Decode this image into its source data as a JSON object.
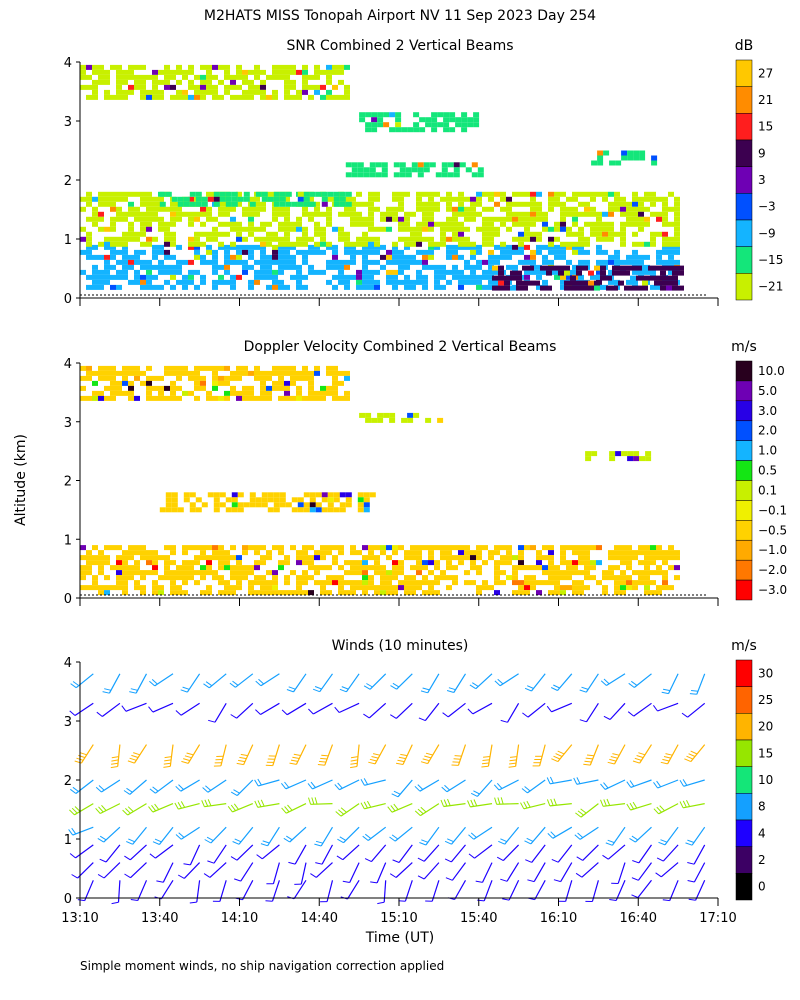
{
  "title": "M2HATS MISS Tonopah Airport NV  11 Sep 2023 Day 254",
  "ylabel": "Altitude (km)",
  "xlabel": "Time (UT)",
  "footnote": "Simple moment winds, no ship navigation correction applied",
  "x_ticks": [
    "13:10",
    "13:40",
    "14:10",
    "14:40",
    "15:10",
    "15:40",
    "16:10",
    "16:40",
    "17:10"
  ],
  "y_ticks": [
    "0",
    "1",
    "2",
    "3",
    "4"
  ],
  "panels": [
    {
      "title": "SNR Combined 2 Vertical Beams",
      "units": "dB",
      "colorbar_labels": [
        "27",
        "21",
        "15",
        "9",
        "3",
        "−3",
        "−9",
        "−15",
        "−21"
      ],
      "colorbar_colors": [
        "#ffc800",
        "#ff8c00",
        "#ff1e1e",
        "#3c0050",
        "#6e00b4",
        "#0050ff",
        "#14b4ff",
        "#14e67a",
        "#c8f000"
      ]
    },
    {
      "title": "Doppler Velocity Combined 2 Vertical Beams",
      "units": "m/s",
      "colorbar_labels": [
        "10.0",
        "5.0",
        "3.0",
        "2.0",
        "1.0",
        "0.5",
        "0.1",
        "−0.1",
        "−0.5",
        "−1.0",
        "−2.0",
        "−3.0"
      ],
      "colorbar_colors": [
        "#28001e",
        "#6e00b4",
        "#2800e6",
        "#0050ff",
        "#14b4ff",
        "#14e614",
        "#c8f000",
        "#f0f000",
        "#ffd200",
        "#ffaa00",
        "#ff7800",
        "#ff0000"
      ]
    },
    {
      "title": "Winds (10 minutes)",
      "units": "m/s",
      "colorbar_labels": [
        "30",
        "25",
        "20",
        "15",
        "10",
        "8",
        "4",
        "2",
        "0"
      ],
      "colorbar_colors": [
        "#ff0000",
        "#ff6400",
        "#ffb400",
        "#96e600",
        "#14e678",
        "#14a0ff",
        "#1e00ff",
        "#3c0064",
        "#000000"
      ]
    }
  ],
  "chart_data": [
    {
      "type": "heatmap",
      "title": "SNR Combined 2 Vertical Beams",
      "xlabel": "Time (UT)",
      "ylabel": "Altitude (km)",
      "xlim": [
        "13:10",
        "17:10"
      ],
      "ylim": [
        0,
        4
      ],
      "units": "dB",
      "color_levels": [
        -21,
        -15,
        -9,
        -3,
        3,
        9,
        15,
        21,
        27
      ],
      "layers": [
        {
          "t_start": "13:10",
          "t_end": "16:55",
          "z_bottom": 0.15,
          "z_top": 0.9,
          "snr_db": -9
        },
        {
          "t_start": "15:45",
          "t_end": "16:55",
          "z_bottom": 0.15,
          "z_top": 0.55,
          "snr_db": 9
        },
        {
          "t_start": "13:10",
          "t_end": "16:55",
          "z_bottom": 0.9,
          "z_top": 1.8,
          "snr_db": -18
        },
        {
          "t_start": "13:40",
          "t_end": "14:50",
          "z_bottom": 1.6,
          "z_top": 1.8,
          "snr_db": -15
        },
        {
          "t_start": "14:50",
          "t_end": "15:40",
          "z_bottom": 2.1,
          "z_top": 2.3,
          "snr_db": -15
        },
        {
          "t_start": "16:20",
          "t_end": "16:45",
          "z_bottom": 2.3,
          "z_top": 2.5,
          "snr_db": -15
        },
        {
          "t_start": "14:55",
          "t_end": "15:40",
          "z_bottom": 2.85,
          "z_top": 3.15,
          "snr_db": -12
        },
        {
          "t_start": "13:10",
          "t_end": "14:50",
          "z_bottom": 3.4,
          "z_top": 3.95,
          "snr_db": -18
        }
      ]
    },
    {
      "type": "heatmap",
      "title": "Doppler Velocity Combined 2 Vertical Beams",
      "xlabel": "Time (UT)",
      "ylabel": "Altitude (km)",
      "xlim": [
        "13:10",
        "17:10"
      ],
      "ylim": [
        0,
        4
      ],
      "units": "m/s",
      "color_levels": [
        -3.0,
        -2.0,
        -1.0,
        -0.5,
        -0.1,
        0.1,
        0.5,
        1.0,
        2.0,
        3.0,
        5.0,
        10.0
      ],
      "layers": [
        {
          "t_start": "13:10",
          "t_end": "16:55",
          "z_bottom": 0.1,
          "z_top": 0.9,
          "velocity_ms": -0.5
        },
        {
          "t_start": "13:40",
          "t_end": "15:00",
          "z_bottom": 1.5,
          "z_top": 1.8,
          "velocity_ms": -0.5
        },
        {
          "t_start": "16:20",
          "t_end": "16:45",
          "z_bottom": 2.35,
          "z_top": 2.5,
          "velocity_ms": 0.1
        },
        {
          "t_start": "14:55",
          "t_end": "15:25",
          "z_bottom": 3.0,
          "z_top": 3.15,
          "velocity_ms": 0.1
        },
        {
          "t_start": "13:10",
          "t_end": "14:50",
          "z_bottom": 3.4,
          "z_top": 3.95,
          "velocity_ms": -0.5
        }
      ]
    },
    {
      "type": "scatter",
      "title": "Winds (10 minutes)",
      "xlabel": "Time (UT)",
      "ylabel": "Altitude (km)",
      "xlim": [
        "13:10",
        "17:10"
      ],
      "ylim": [
        0,
        4
      ],
      "units": "m/s",
      "color_levels": [
        0,
        2,
        4,
        8,
        10,
        15,
        20,
        25,
        30
      ],
      "profile_times": [
        "13:15",
        "13:25",
        "13:35",
        "13:45",
        "13:55",
        "14:05",
        "14:15",
        "14:25",
        "14:35",
        "14:45",
        "14:55",
        "15:05",
        "15:15",
        "15:25",
        "15:35",
        "15:45",
        "15:55",
        "16:05",
        "16:15",
        "16:25",
        "16:35",
        "16:45",
        "16:55",
        "17:05"
      ],
      "levels": [
        {
          "z_km": 0.3,
          "speed_ms": 4,
          "dir_deg": 200
        },
        {
          "z_km": 0.6,
          "speed_ms": 4,
          "dir_deg": 210
        },
        {
          "z_km": 0.9,
          "speed_ms": 4,
          "dir_deg": 220
        },
        {
          "z_km": 1.2,
          "speed_ms": 8,
          "dir_deg": 230
        },
        {
          "z_km": 1.6,
          "speed_ms": 15,
          "dir_deg": 250
        },
        {
          "z_km": 2.0,
          "speed_ms": 8,
          "dir_deg": 240
        },
        {
          "z_km": 2.6,
          "speed_ms": 20,
          "dir_deg": 200
        },
        {
          "z_km": 3.3,
          "speed_ms": 4,
          "dir_deg": 230
        },
        {
          "z_km": 3.8,
          "speed_ms": 8,
          "dir_deg": 220
        }
      ]
    }
  ]
}
